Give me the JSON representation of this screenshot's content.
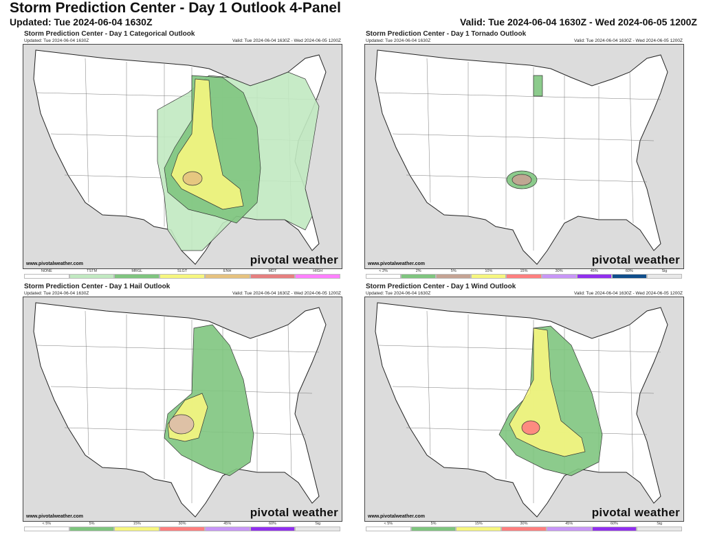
{
  "header": {
    "title": "Storm Prediction Center - Day 1 Outlook 4-Panel",
    "updated": "Updated: Tue 2024-06-04 1630Z",
    "valid": "Valid: Tue 2024-06-04 1630Z - Wed 2024-06-05 1200Z"
  },
  "panels": [
    {
      "title": "Storm Prediction Center - Day 1 Categorical Outlook",
      "updated": "Updated: Tue 2024-06-04 1630Z",
      "valid": "Valid: Tue 2024-06-04 1630Z - Wed 2024-06-05 1200Z",
      "site": "www.pivotalweather.com",
      "logo": "pivotal weather",
      "legend": [
        {
          "label": "NONE",
          "color": "#ffffff"
        },
        {
          "label": "TSTM",
          "color": "#c1e9c1"
        },
        {
          "label": "MRGL",
          "color": "#7fc57f"
        },
        {
          "label": "SLGT",
          "color": "#f6f67f"
        },
        {
          "label": "ENH",
          "color": "#e6c27f"
        },
        {
          "label": "MDT",
          "color": "#e67f7f"
        },
        {
          "label": "HIGH",
          "color": "#ff80ff"
        }
      ]
    },
    {
      "title": "Storm Prediction Center - Day 1 Tornado Outlook",
      "updated": "Updated: Tue 2024-06-04 1630Z",
      "valid": "Valid: Tue 2024-06-04 1630Z - Wed 2024-06-05 1200Z",
      "site": "www.pivotalweather.com",
      "logo": "pivotal weather",
      "legend": [
        {
          "label": "< 2%",
          "color": "#ffffff"
        },
        {
          "label": "2%",
          "color": "#7fc57f"
        },
        {
          "label": "5%",
          "color": "#c5a393"
        },
        {
          "label": "10%",
          "color": "#f6f67f"
        },
        {
          "label": "15%",
          "color": "#ff7f7f"
        },
        {
          "label": "30%",
          "color": "#c896f7"
        },
        {
          "label": "45%",
          "color": "#9130ee"
        },
        {
          "label": "60%",
          "color": "#104e8b"
        },
        {
          "label": "Sig",
          "color": "#e8e8e8"
        }
      ]
    },
    {
      "title": "Storm Prediction Center - Day 1 Hail Outlook",
      "updated": "Updated: Tue 2024-06-04 1630Z",
      "valid": "Valid: Tue 2024-06-04 1630Z - Wed 2024-06-05 1200Z",
      "site": "www.pivotalweather.com",
      "logo": "pivotal weather",
      "legend": [
        {
          "label": "< 5%",
          "color": "#ffffff"
        },
        {
          "label": "5%",
          "color": "#7fc57f"
        },
        {
          "label": "15%",
          "color": "#f6f67f"
        },
        {
          "label": "30%",
          "color": "#ff7f7f"
        },
        {
          "label": "45%",
          "color": "#c896f7"
        },
        {
          "label": "60%",
          "color": "#9130ee"
        },
        {
          "label": "Sig",
          "color": "#e8e8e8"
        }
      ]
    },
    {
      "title": "Storm Prediction Center - Day 1 Wind Outlook",
      "updated": "Updated: Tue 2024-06-04 1630Z",
      "valid": "Valid: Tue 2024-06-04 1630Z - Wed 2024-06-05 1200Z",
      "site": "www.pivotalweather.com",
      "logo": "pivotal weather",
      "legend": [
        {
          "label": "< 5%",
          "color": "#ffffff"
        },
        {
          "label": "5%",
          "color": "#7fc57f"
        },
        {
          "label": "15%",
          "color": "#f6f67f"
        },
        {
          "label": "30%",
          "color": "#ff7f7f"
        },
        {
          "label": "45%",
          "color": "#c896f7"
        },
        {
          "label": "60%",
          "color": "#9130ee"
        },
        {
          "label": "Sig",
          "color": "#e8e8e8"
        }
      ]
    }
  ]
}
